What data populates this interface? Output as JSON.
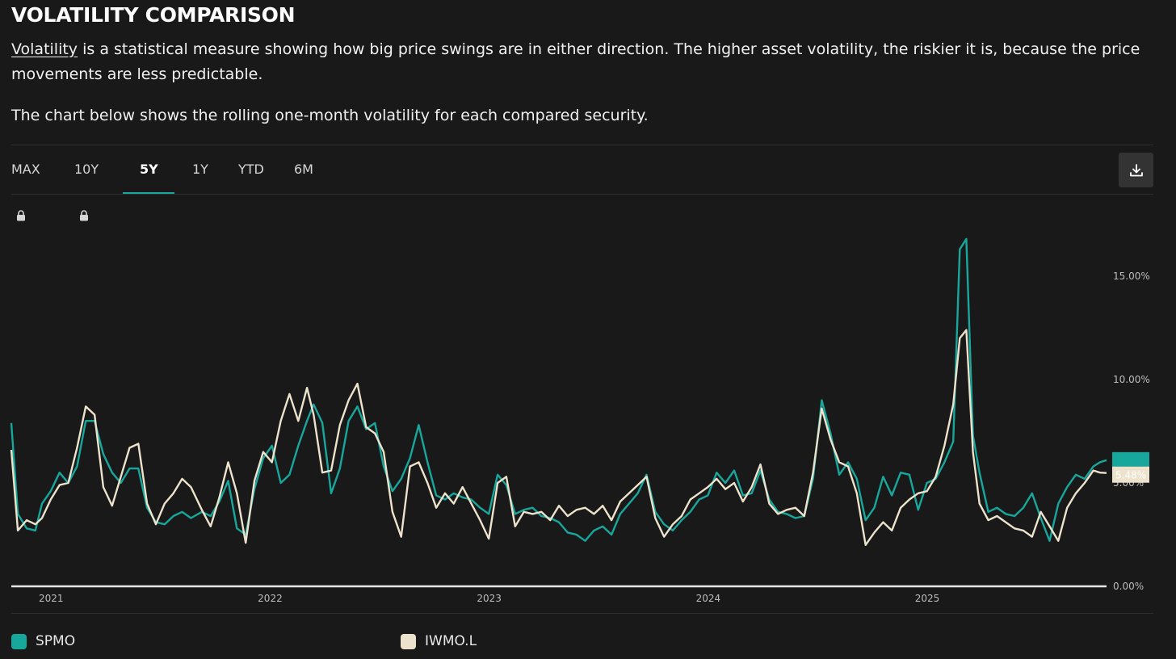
{
  "header": {
    "title": "VOLATILITY COMPARISON",
    "intro_link": "Volatility",
    "intro_rest": " is a statistical measure showing how big price swings are in either direction. The higher asset volatility, the riskier it is, because the price movements are less predictable.",
    "chart_note": "The chart below shows the rolling one-month volatility for each compared security."
  },
  "tabs": [
    {
      "label": "MAX",
      "locked": true,
      "active": false
    },
    {
      "label": "10Y",
      "locked": true,
      "active": false
    },
    {
      "label": "5Y",
      "locked": false,
      "active": true
    },
    {
      "label": "1Y",
      "locked": false,
      "active": false
    },
    {
      "label": "YTD",
      "locked": false,
      "active": false
    },
    {
      "label": "6M",
      "locked": false,
      "active": false
    }
  ],
  "icons": {
    "lock": "lock-icon",
    "download": "download-icon"
  },
  "colors": {
    "spmo": "#17a79c",
    "iwmo": "#ede2cc",
    "background": "#191919",
    "accent": "#17a79c"
  },
  "legend": [
    {
      "name": "SPMO",
      "color": "#17a79c"
    },
    {
      "name": "IWMO.L",
      "color": "#ede2cc"
    }
  ],
  "chart_data": {
    "type": "line",
    "title": "",
    "xlabel": "",
    "ylabel": "",
    "x_range": [
      2020.93,
      2025.93
    ],
    "ylim": [
      0,
      17.0
    ],
    "y_ticks": [
      {
        "value": 0,
        "label": "0.00%"
      },
      {
        "value": 5,
        "label": "5.00%"
      },
      {
        "value": 10,
        "label": "10.00%"
      },
      {
        "value": 15,
        "label": "15.00%"
      }
    ],
    "x_ticks": [
      {
        "value": 2021.0,
        "label": "2021"
      },
      {
        "value": 2022.0,
        "label": "2022"
      },
      {
        "value": 2023.0,
        "label": "2023"
      },
      {
        "value": 2024.0,
        "label": "2024"
      },
      {
        "value": 2025.0,
        "label": "2025"
      }
    ],
    "last_value_label": "5.48%",
    "series": [
      {
        "name": "SPMO",
        "points": [
          [
            2020.93,
            7.9
          ],
          [
            2020.96,
            3.5
          ],
          [
            2021.0,
            2.8
          ],
          [
            2021.04,
            2.7
          ],
          [
            2021.07,
            4.0
          ],
          [
            2021.11,
            4.6
          ],
          [
            2021.15,
            5.5
          ],
          [
            2021.19,
            5.0
          ],
          [
            2021.23,
            5.8
          ],
          [
            2021.27,
            8.0
          ],
          [
            2021.31,
            8.0
          ],
          [
            2021.35,
            6.4
          ],
          [
            2021.39,
            5.5
          ],
          [
            2021.43,
            5.0
          ],
          [
            2021.47,
            5.7
          ],
          [
            2021.51,
            5.7
          ],
          [
            2021.55,
            3.8
          ],
          [
            2021.59,
            3.1
          ],
          [
            2021.63,
            3.0
          ],
          [
            2021.67,
            3.4
          ],
          [
            2021.71,
            3.6
          ],
          [
            2021.75,
            3.3
          ],
          [
            2021.8,
            3.6
          ],
          [
            2021.84,
            3.4
          ],
          [
            2021.88,
            4.1
          ],
          [
            2021.92,
            5.1
          ],
          [
            2021.96,
            2.8
          ],
          [
            2022.0,
            2.5
          ],
          [
            2022.04,
            4.7
          ],
          [
            2022.08,
            6.2
          ],
          [
            2022.12,
            6.8
          ],
          [
            2022.16,
            5.0
          ],
          [
            2022.2,
            5.4
          ],
          [
            2022.24,
            6.8
          ],
          [
            2022.28,
            8.0
          ],
          [
            2022.31,
            8.8
          ],
          [
            2022.35,
            7.9
          ],
          [
            2022.39,
            4.5
          ],
          [
            2022.43,
            5.7
          ],
          [
            2022.47,
            8.0
          ],
          [
            2022.51,
            8.7
          ],
          [
            2022.55,
            7.6
          ],
          [
            2022.59,
            7.9
          ],
          [
            2022.63,
            5.8
          ],
          [
            2022.67,
            4.6
          ],
          [
            2022.71,
            5.2
          ],
          [
            2022.75,
            6.2
          ],
          [
            2022.79,
            7.8
          ],
          [
            2022.83,
            6.0
          ],
          [
            2022.87,
            4.4
          ],
          [
            2022.91,
            4.2
          ],
          [
            2022.95,
            4.5
          ],
          [
            2022.99,
            4.3
          ],
          [
            2023.03,
            4.2
          ],
          [
            2023.07,
            3.8
          ],
          [
            2023.11,
            3.5
          ],
          [
            2023.15,
            5.4
          ],
          [
            2023.19,
            4.9
          ],
          [
            2023.23,
            3.5
          ],
          [
            2023.27,
            3.7
          ],
          [
            2023.31,
            3.8
          ],
          [
            2023.35,
            3.4
          ],
          [
            2023.39,
            3.3
          ],
          [
            2023.43,
            3.1
          ],
          [
            2023.47,
            2.6
          ],
          [
            2023.51,
            2.5
          ],
          [
            2023.55,
            2.2
          ],
          [
            2023.59,
            2.7
          ],
          [
            2023.63,
            2.9
          ],
          [
            2023.67,
            2.5
          ],
          [
            2023.71,
            3.5
          ],
          [
            2023.75,
            4.0
          ],
          [
            2023.79,
            4.5
          ],
          [
            2023.83,
            5.4
          ],
          [
            2023.87,
            3.6
          ],
          [
            2023.91,
            3.0
          ],
          [
            2023.95,
            2.7
          ],
          [
            2023.99,
            3.2
          ],
          [
            2024.03,
            3.6
          ],
          [
            2024.07,
            4.2
          ],
          [
            2024.11,
            4.4
          ],
          [
            2024.15,
            5.5
          ],
          [
            2024.19,
            5.0
          ],
          [
            2024.23,
            5.6
          ],
          [
            2024.27,
            4.4
          ],
          [
            2024.31,
            4.5
          ],
          [
            2024.35,
            5.6
          ],
          [
            2024.39,
            4.2
          ],
          [
            2024.43,
            3.6
          ],
          [
            2024.47,
            3.5
          ],
          [
            2024.51,
            3.3
          ],
          [
            2024.55,
            3.4
          ],
          [
            2024.59,
            5.2
          ],
          [
            2024.63,
            9.0
          ],
          [
            2024.67,
            7.4
          ],
          [
            2024.71,
            5.4
          ],
          [
            2024.75,
            6.0
          ],
          [
            2024.79,
            5.2
          ],
          [
            2024.83,
            3.2
          ],
          [
            2024.87,
            3.8
          ],
          [
            2024.91,
            5.3
          ],
          [
            2024.95,
            4.4
          ],
          [
            2024.99,
            5.5
          ],
          [
            2025.03,
            5.4
          ],
          [
            2025.07,
            3.7
          ],
          [
            2025.11,
            5.0
          ],
          [
            2025.15,
            5.2
          ],
          [
            2025.19,
            6.0
          ],
          [
            2025.23,
            7.0
          ],
          [
            2025.26,
            16.3
          ],
          [
            2025.29,
            16.8
          ],
          [
            2025.32,
            7.3
          ],
          [
            2025.35,
            5.5
          ],
          [
            2025.39,
            3.6
          ],
          [
            2025.43,
            3.8
          ],
          [
            2025.47,
            3.5
          ],
          [
            2025.51,
            3.4
          ],
          [
            2025.55,
            3.8
          ],
          [
            2025.59,
            4.5
          ],
          [
            2025.63,
            3.3
          ],
          [
            2025.67,
            2.2
          ],
          [
            2025.71,
            4.0
          ],
          [
            2025.75,
            4.8
          ],
          [
            2025.79,
            5.4
          ],
          [
            2025.83,
            5.2
          ],
          [
            2025.87,
            5.8
          ],
          [
            2025.9,
            6.0
          ],
          [
            2025.93,
            6.1
          ]
        ]
      },
      {
        "name": "IWMO.L",
        "points": [
          [
            2020.93,
            6.6
          ],
          [
            2020.96,
            2.7
          ],
          [
            2021.0,
            3.2
          ],
          [
            2021.04,
            3.0
          ],
          [
            2021.07,
            3.3
          ],
          [
            2021.11,
            4.2
          ],
          [
            2021.15,
            4.9
          ],
          [
            2021.19,
            5.0
          ],
          [
            2021.23,
            6.7
          ],
          [
            2021.27,
            8.7
          ],
          [
            2021.31,
            8.3
          ],
          [
            2021.35,
            4.8
          ],
          [
            2021.39,
            3.9
          ],
          [
            2021.43,
            5.3
          ],
          [
            2021.47,
            6.7
          ],
          [
            2021.51,
            6.9
          ],
          [
            2021.55,
            4.0
          ],
          [
            2021.59,
            3.0
          ],
          [
            2021.63,
            4.0
          ],
          [
            2021.67,
            4.5
          ],
          [
            2021.71,
            5.2
          ],
          [
            2021.75,
            4.8
          ],
          [
            2021.8,
            3.7
          ],
          [
            2021.84,
            2.9
          ],
          [
            2021.88,
            4.3
          ],
          [
            2021.92,
            6.0
          ],
          [
            2021.96,
            4.5
          ],
          [
            2022.0,
            2.1
          ],
          [
            2022.04,
            5.1
          ],
          [
            2022.08,
            6.5
          ],
          [
            2022.12,
            6.0
          ],
          [
            2022.16,
            8.0
          ],
          [
            2022.2,
            9.3
          ],
          [
            2022.24,
            8.0
          ],
          [
            2022.28,
            9.6
          ],
          [
            2022.31,
            8.3
          ],
          [
            2022.35,
            5.5
          ],
          [
            2022.39,
            5.6
          ],
          [
            2022.43,
            7.8
          ],
          [
            2022.47,
            9.0
          ],
          [
            2022.51,
            9.8
          ],
          [
            2022.55,
            7.7
          ],
          [
            2022.59,
            7.4
          ],
          [
            2022.63,
            6.5
          ],
          [
            2022.67,
            3.6
          ],
          [
            2022.71,
            2.4
          ],
          [
            2022.75,
            5.8
          ],
          [
            2022.79,
            6.0
          ],
          [
            2022.83,
            5.0
          ],
          [
            2022.87,
            3.8
          ],
          [
            2022.91,
            4.5
          ],
          [
            2022.95,
            4.0
          ],
          [
            2022.99,
            4.8
          ],
          [
            2023.03,
            4.0
          ],
          [
            2023.07,
            3.2
          ],
          [
            2023.11,
            2.3
          ],
          [
            2023.15,
            5.0
          ],
          [
            2023.19,
            5.3
          ],
          [
            2023.23,
            2.9
          ],
          [
            2023.27,
            3.6
          ],
          [
            2023.31,
            3.5
          ],
          [
            2023.35,
            3.6
          ],
          [
            2023.39,
            3.2
          ],
          [
            2023.43,
            3.9
          ],
          [
            2023.47,
            3.4
          ],
          [
            2023.51,
            3.7
          ],
          [
            2023.55,
            3.8
          ],
          [
            2023.59,
            3.5
          ],
          [
            2023.63,
            3.9
          ],
          [
            2023.67,
            3.2
          ],
          [
            2023.71,
            4.1
          ],
          [
            2023.75,
            4.5
          ],
          [
            2023.79,
            4.9
          ],
          [
            2023.83,
            5.3
          ],
          [
            2023.87,
            3.3
          ],
          [
            2023.91,
            2.4
          ],
          [
            2023.95,
            3.0
          ],
          [
            2023.99,
            3.4
          ],
          [
            2024.03,
            4.2
          ],
          [
            2024.07,
            4.5
          ],
          [
            2024.11,
            4.8
          ],
          [
            2024.15,
            5.2
          ],
          [
            2024.19,
            4.7
          ],
          [
            2024.23,
            5.0
          ],
          [
            2024.27,
            4.1
          ],
          [
            2024.31,
            4.8
          ],
          [
            2024.35,
            5.9
          ],
          [
            2024.39,
            4.0
          ],
          [
            2024.43,
            3.5
          ],
          [
            2024.47,
            3.7
          ],
          [
            2024.51,
            3.8
          ],
          [
            2024.55,
            3.4
          ],
          [
            2024.59,
            5.5
          ],
          [
            2024.63,
            8.6
          ],
          [
            2024.67,
            7.1
          ],
          [
            2024.71,
            6.0
          ],
          [
            2024.75,
            5.8
          ],
          [
            2024.79,
            4.5
          ],
          [
            2024.83,
            2.0
          ],
          [
            2024.87,
            2.6
          ],
          [
            2024.91,
            3.1
          ],
          [
            2024.95,
            2.7
          ],
          [
            2024.99,
            3.8
          ],
          [
            2025.03,
            4.2
          ],
          [
            2025.07,
            4.5
          ],
          [
            2025.11,
            4.6
          ],
          [
            2025.15,
            5.3
          ],
          [
            2025.19,
            6.8
          ],
          [
            2025.23,
            8.8
          ],
          [
            2025.26,
            12.0
          ],
          [
            2025.29,
            12.4
          ],
          [
            2025.32,
            6.5
          ],
          [
            2025.35,
            4.0
          ],
          [
            2025.39,
            3.2
          ],
          [
            2025.43,
            3.4
          ],
          [
            2025.47,
            3.1
          ],
          [
            2025.51,
            2.8
          ],
          [
            2025.55,
            2.7
          ],
          [
            2025.59,
            2.4
          ],
          [
            2025.63,
            3.6
          ],
          [
            2025.67,
            2.9
          ],
          [
            2025.71,
            2.2
          ],
          [
            2025.75,
            3.8
          ],
          [
            2025.79,
            4.5
          ],
          [
            2025.83,
            5.0
          ],
          [
            2025.87,
            5.6
          ],
          [
            2025.9,
            5.5
          ],
          [
            2025.93,
            5.48
          ]
        ]
      }
    ]
  }
}
